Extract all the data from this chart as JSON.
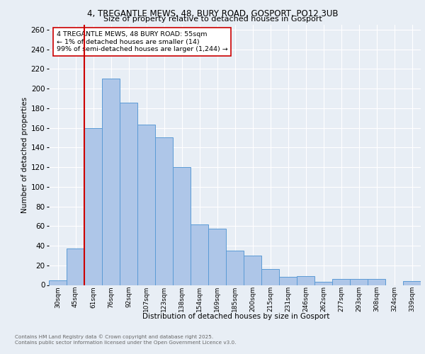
{
  "title1": "4, TREGANTLE MEWS, 48, BURY ROAD, GOSPORT, PO12 3UB",
  "title2": "Size of property relative to detached houses in Gosport",
  "xlabel": "Distribution of detached houses by size in Gosport",
  "ylabel": "Number of detached properties",
  "bin_labels": [
    "30sqm",
    "45sqm",
    "61sqm",
    "76sqm",
    "92sqm",
    "107sqm",
    "123sqm",
    "138sqm",
    "154sqm",
    "169sqm",
    "185sqm",
    "200sqm",
    "215sqm",
    "231sqm",
    "246sqm",
    "262sqm",
    "277sqm",
    "293sqm",
    "308sqm",
    "324sqm",
    "339sqm"
  ],
  "bin_values": [
    5,
    37,
    160,
    210,
    186,
    163,
    150,
    120,
    62,
    57,
    35,
    30,
    16,
    8,
    9,
    3,
    6,
    6,
    6,
    0,
    4
  ],
  "bar_color": "#aec6e8",
  "bar_edge_color": "#5b9bd5",
  "vline_color": "#cc0000",
  "annotation_text": "4 TREGANTLE MEWS, 48 BURY ROAD: 55sqm\n← 1% of detached houses are smaller (14)\n99% of semi-detached houses are larger (1,244) →",
  "annotation_box_color": "white",
  "annotation_box_edge": "#cc0000",
  "ylim": [
    0,
    265
  ],
  "yticks": [
    0,
    20,
    40,
    60,
    80,
    100,
    120,
    140,
    160,
    180,
    200,
    220,
    240,
    260
  ],
  "footer1": "Contains HM Land Registry data © Crown copyright and database right 2025.",
  "footer2": "Contains public sector information licensed under the Open Government Licence v3.0.",
  "bg_color": "#e8eef5",
  "plot_bg_color": "#e8eef5"
}
